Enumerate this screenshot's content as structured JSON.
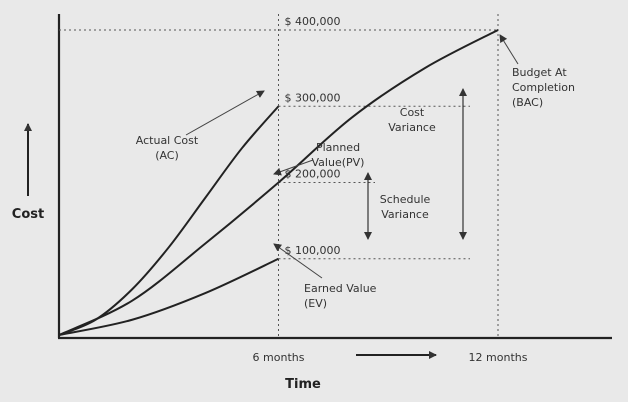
{
  "chart_data": {
    "type": "line",
    "xlabel": "Time",
    "ylabel": "Cost",
    "x_ticks": [
      {
        "month": 6,
        "label": "6 months"
      },
      {
        "month": 12,
        "label": "12 months"
      }
    ],
    "xlim": [
      0,
      12
    ],
    "ylim": [
      0,
      400000
    ],
    "value_labels": [
      {
        "value": 400000,
        "text": "$ 400,000"
      },
      {
        "value": 300000,
        "text": "$ 300,000"
      },
      {
        "value": 200000,
        "text": "$ 200,000"
      },
      {
        "value": 100000,
        "text": "$ 100,000"
      }
    ],
    "series": [
      {
        "name": "Actual Cost (AC)",
        "x": [
          0,
          1,
          2,
          3,
          4,
          5,
          6
        ],
        "y": [
          0,
          20000,
          60000,
          115000,
          180000,
          245000,
          300000
        ]
      },
      {
        "name": "Planned Value(PV)",
        "x": [
          0,
          2,
          4,
          6,
          8,
          10,
          12
        ],
        "y": [
          0,
          45000,
          120000,
          200000,
          285000,
          350000,
          400000
        ]
      },
      {
        "name": "Earned Value (EV)",
        "x": [
          0,
          2,
          4,
          6
        ],
        "y": [
          0,
          20000,
          55000,
          100000
        ]
      }
    ],
    "annotations": {
      "ac": [
        "Actual Cost",
        "(AC)"
      ],
      "pv": [
        "Planned",
        "Value(PV)"
      ],
      "ev": [
        "Earned Value",
        "(EV)"
      ],
      "bac": [
        "Budget At",
        "Completion",
        "(BAC)"
      ],
      "cost_variance": [
        "Cost",
        "Variance"
      ],
      "schedule_variance": [
        "Schedule",
        "Variance"
      ]
    },
    "grid": false,
    "legend": "none"
  }
}
